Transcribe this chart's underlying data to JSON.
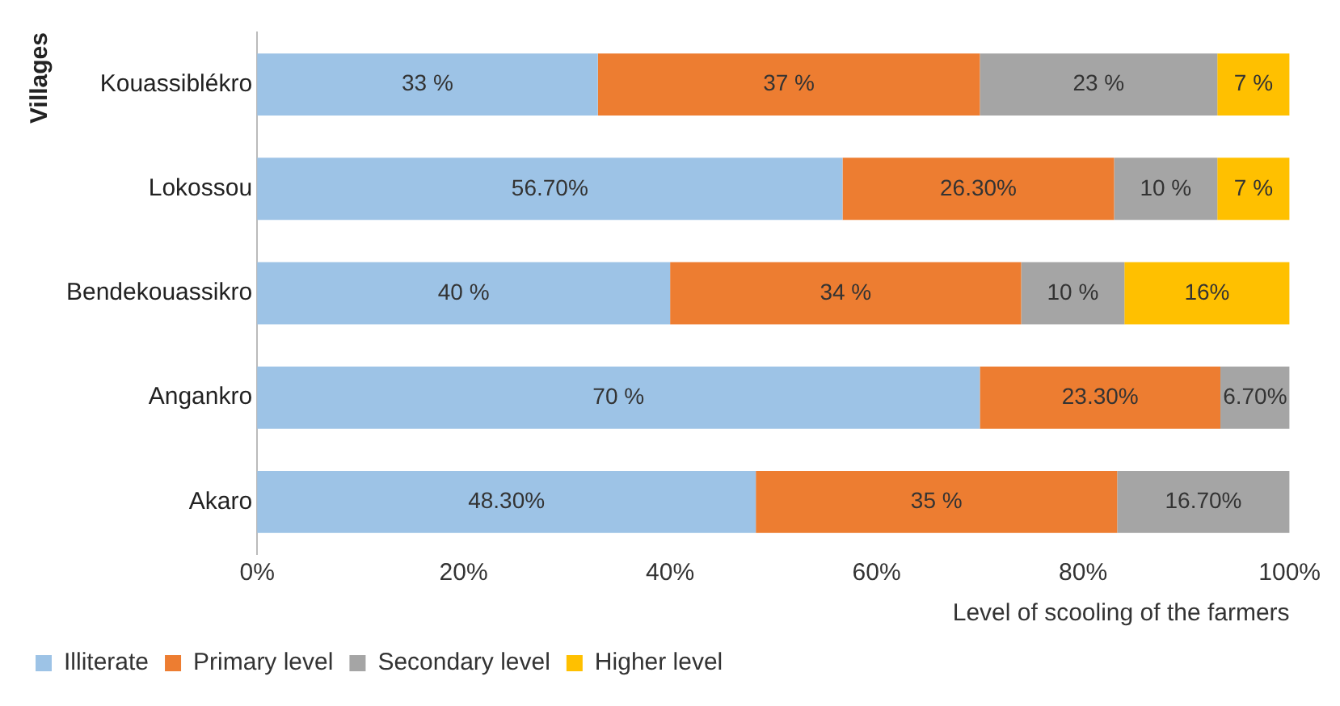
{
  "chart_data": {
    "type": "bar",
    "orientation": "horizontal",
    "stacked": true,
    "xlabel": "Level of scooling of the farmers",
    "ylabel": "Villages",
    "categories": [
      "Kouassiblékro",
      "Lokossou",
      "Bendekouassikro",
      "Angankro",
      "Akaro"
    ],
    "series": [
      {
        "name": "Illiterate",
        "color": "#9dc3e6",
        "values": [
          33,
          56.7,
          40,
          70,
          48.3
        ],
        "value_labels": [
          "33 %",
          "56.70%",
          "40 %",
          "70 %",
          "48.30%"
        ]
      },
      {
        "name": "Primary level",
        "color": "#ed7d31",
        "values": [
          37,
          26.3,
          34,
          23.3,
          35
        ],
        "value_labels": [
          "37 %",
          "26.30%",
          "34 %",
          "23.30%",
          "35 %"
        ]
      },
      {
        "name": "Secondary level",
        "color": "#a5a5a5",
        "values": [
          23,
          10,
          10,
          6.7,
          16.7
        ],
        "value_labels": [
          "23 %",
          "10 %",
          "10 %",
          "6.70%",
          "16.70%"
        ]
      },
      {
        "name": "Higher level",
        "color": "#ffc000",
        "values": [
          7,
          7,
          16,
          null,
          null
        ],
        "value_labels": [
          "7 %",
          "7 %",
          "16%",
          null,
          null
        ]
      }
    ],
    "xlim": [
      0,
      100
    ],
    "xticks": [
      {
        "value": 0,
        "label": "0%"
      },
      {
        "value": 20,
        "label": "20%"
      },
      {
        "value": 40,
        "label": "40%"
      },
      {
        "value": 60,
        "label": "60%"
      },
      {
        "value": 80,
        "label": "80%"
      },
      {
        "value": 100,
        "label": "100%"
      }
    ],
    "grid": false,
    "legend": "bottom left"
  }
}
